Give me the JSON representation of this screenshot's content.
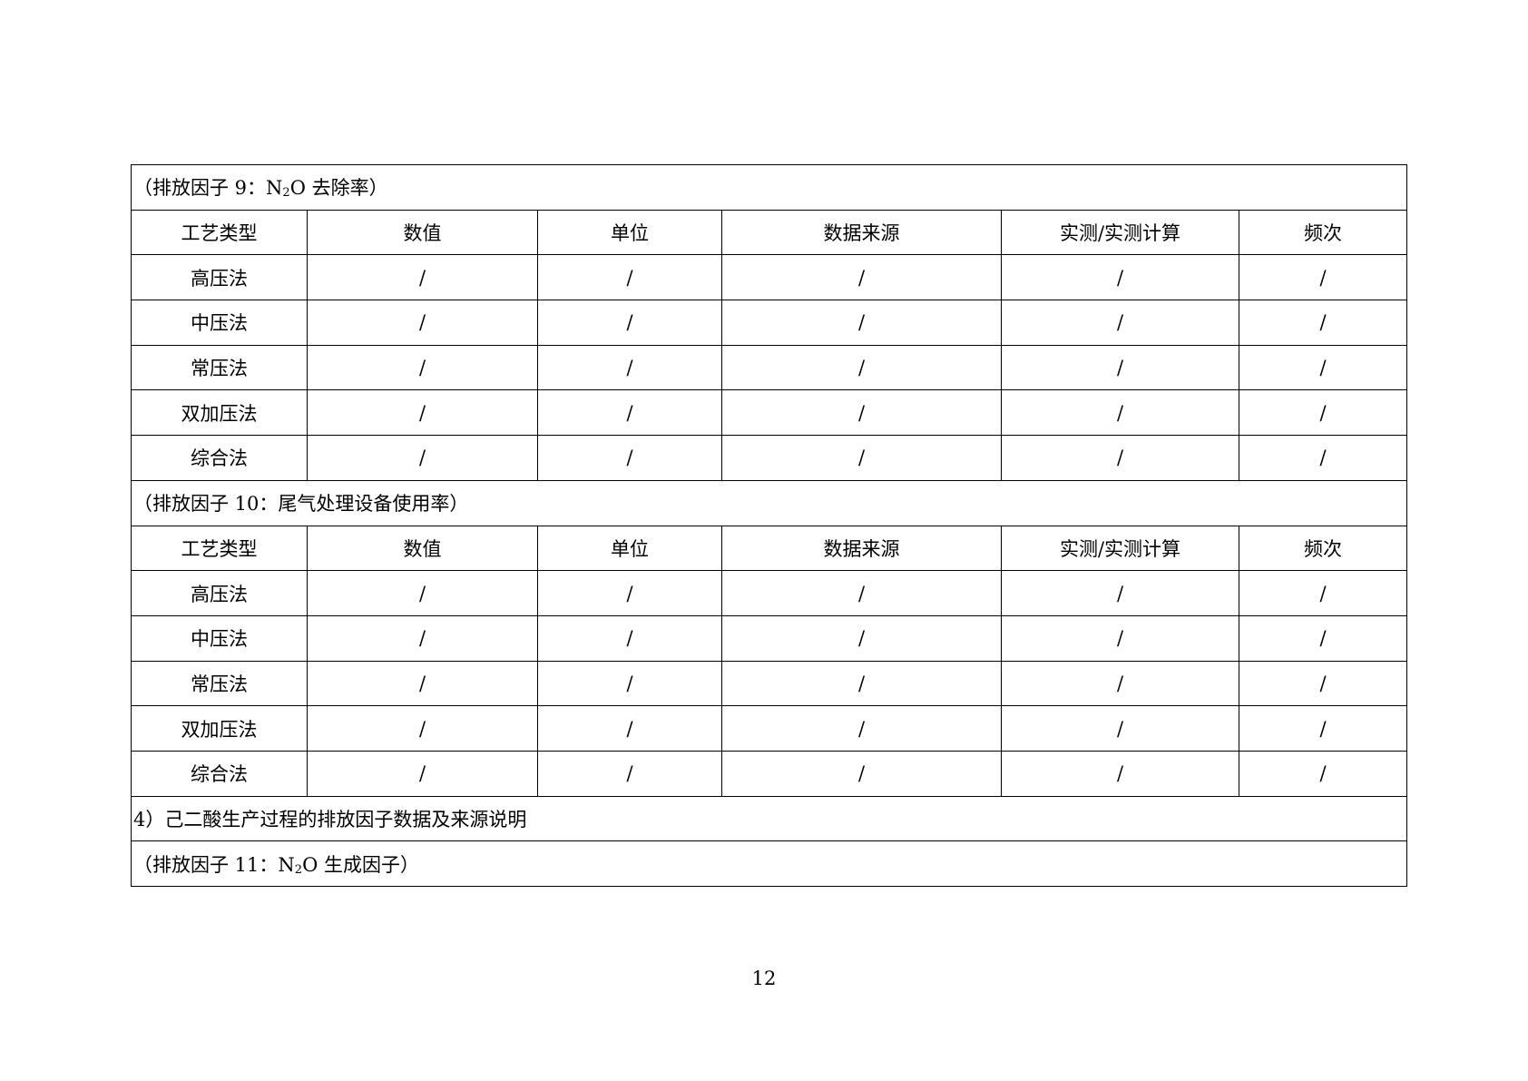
{
  "sections": [
    {
      "title_prefix": "（排放因子 9：N",
      "title_sub": "2",
      "title_suffix": "O 去除率）",
      "headers": [
        "工艺类型",
        "数值",
        "单位",
        "数据来源",
        "实测/实测计算",
        "频次"
      ],
      "rows": [
        [
          "高压法",
          "/",
          "/",
          "/",
          "/",
          "/"
        ],
        [
          "中压法",
          "/",
          "/",
          "/",
          "/",
          "/"
        ],
        [
          "常压法",
          "/",
          "/",
          "/",
          "/",
          "/"
        ],
        [
          "双加压法",
          "/",
          "/",
          "/",
          "/",
          "/"
        ],
        [
          "综合法",
          "/",
          "/",
          "/",
          "/",
          "/"
        ]
      ]
    },
    {
      "title": "（排放因子 10：尾气处理设备使用率）",
      "headers": [
        "工艺类型",
        "数值",
        "单位",
        "数据来源",
        "实测/实测计算",
        "频次"
      ],
      "rows": [
        [
          "高压法",
          "/",
          "/",
          "/",
          "/",
          "/"
        ],
        [
          "中压法",
          "/",
          "/",
          "/",
          "/",
          "/"
        ],
        [
          "常压法",
          "/",
          "/",
          "/",
          "/",
          "/"
        ],
        [
          "双加压法",
          "/",
          "/",
          "/",
          "/",
          "/"
        ],
        [
          "综合法",
          "/",
          "/",
          "/",
          "/",
          "/"
        ]
      ]
    }
  ],
  "heading4": "4）己二酸生产过程的排放因子数据及来源说明",
  "factor11": {
    "prefix": "（排放因子 11：N",
    "sub": "2",
    "suffix": "O 生成因子）"
  },
  "page_number": "12"
}
